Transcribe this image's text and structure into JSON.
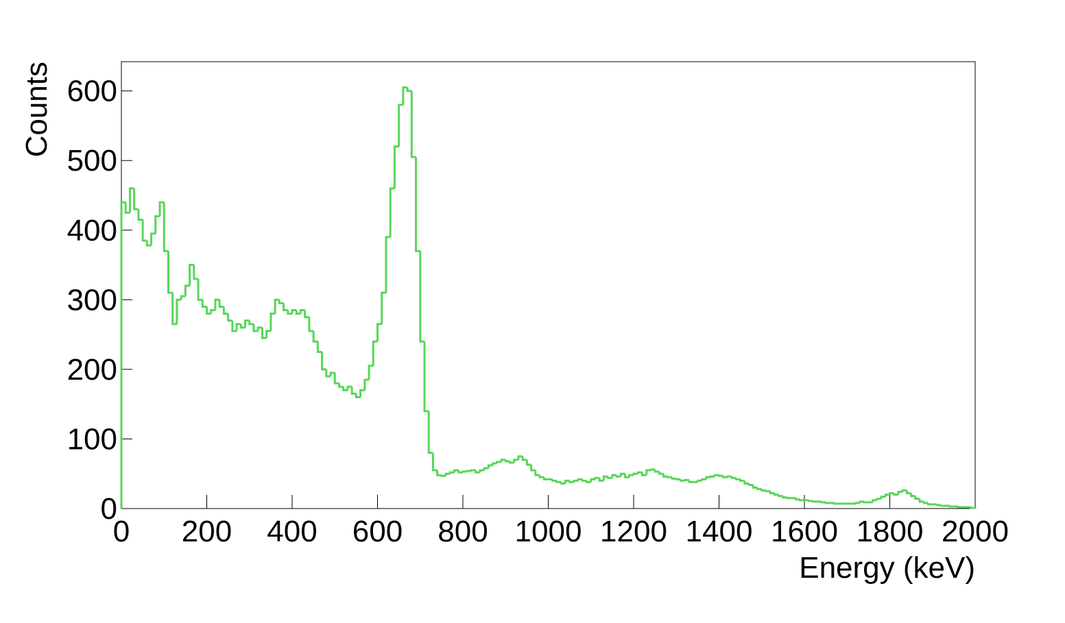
{
  "chart_data": {
    "type": "histogram",
    "x_label": "Energy (keV)",
    "y_label": "Counts",
    "color": "#57d657",
    "bins": [
      0,
      10,
      20,
      30,
      40,
      50,
      60,
      70,
      80,
      90,
      100,
      110,
      120,
      130,
      140,
      150,
      160,
      170,
      180,
      190,
      200,
      210,
      220,
      230,
      240,
      250,
      260,
      270,
      280,
      290,
      300,
      310,
      320,
      330,
      340,
      350,
      360,
      370,
      380,
      390,
      400,
      410,
      420,
      430,
      440,
      450,
      460,
      470,
      480,
      490,
      500,
      510,
      520,
      530,
      540,
      550,
      560,
      570,
      580,
      590,
      600,
      610,
      620,
      630,
      640,
      650,
      660,
      670,
      680,
      690,
      700,
      710,
      720,
      730,
      740,
      750,
      760,
      770,
      780,
      790,
      800,
      810,
      820,
      830,
      840,
      850,
      860,
      870,
      880,
      890,
      900,
      910,
      920,
      930,
      940,
      950,
      960,
      970,
      980,
      990,
      1000,
      1010,
      1020,
      1030,
      1040,
      1050,
      1060,
      1070,
      1080,
      1090,
      1100,
      1110,
      1120,
      1130,
      1140,
      1150,
      1160,
      1170,
      1180,
      1190,
      1200,
      1210,
      1220,
      1230,
      1240,
      1250,
      1260,
      1270,
      1280,
      1290,
      1300,
      1310,
      1320,
      1330,
      1340,
      1350,
      1360,
      1370,
      1380,
      1390,
      1400,
      1410,
      1420,
      1430,
      1440,
      1450,
      1460,
      1470,
      1480,
      1490,
      1500,
      1510,
      1520,
      1530,
      1540,
      1550,
      1560,
      1570,
      1580,
      1590,
      1600,
      1610,
      1620,
      1630,
      1640,
      1650,
      1660,
      1670,
      1680,
      1690,
      1700,
      1710,
      1720,
      1730,
      1740,
      1750,
      1760,
      1770,
      1780,
      1790,
      1800,
      1810,
      1820,
      1830,
      1840,
      1850,
      1860,
      1870,
      1880,
      1890,
      1900,
      1910,
      1920,
      1930,
      1940,
      1950,
      1960,
      1970,
      1980,
      1990,
      2000
    ],
    "counts": [
      440,
      425,
      460,
      430,
      415,
      385,
      378,
      395,
      420,
      440,
      370,
      310,
      265,
      300,
      305,
      320,
      350,
      330,
      300,
      290,
      280,
      285,
      300,
      290,
      280,
      270,
      255,
      265,
      260,
      270,
      265,
      255,
      260,
      245,
      255,
      280,
      300,
      295,
      285,
      280,
      285,
      280,
      285,
      275,
      255,
      240,
      225,
      200,
      190,
      195,
      180,
      175,
      170,
      175,
      165,
      160,
      170,
      185,
      205,
      240,
      265,
      310,
      390,
      460,
      520,
      580,
      605,
      600,
      505,
      370,
      240,
      140,
      80,
      55,
      48,
      47,
      50,
      52,
      55,
      52,
      53,
      54,
      55,
      52,
      55,
      58,
      62,
      65,
      67,
      70,
      68,
      66,
      70,
      75,
      70,
      63,
      55,
      48,
      45,
      42,
      42,
      40,
      38,
      36,
      40,
      38,
      40,
      42,
      40,
      38,
      42,
      44,
      40,
      46,
      44,
      48,
      46,
      50,
      45,
      48,
      50,
      52,
      48,
      55,
      56,
      53,
      50,
      46,
      45,
      43,
      42,
      40,
      41,
      38,
      38,
      40,
      42,
      45,
      46,
      48,
      47,
      45,
      46,
      44,
      42,
      40,
      36,
      34,
      30,
      28,
      26,
      25,
      22,
      20,
      18,
      16,
      15,
      15,
      13,
      12,
      12,
      11,
      10,
      10,
      9,
      8,
      8,
      7,
      7,
      7,
      7,
      7,
      8,
      10,
      9,
      9,
      12,
      14,
      17,
      20,
      22,
      20,
      24,
      26,
      22,
      18,
      14,
      10,
      8,
      6,
      6,
      5,
      4,
      4,
      3,
      3,
      2,
      2,
      2,
      1
    ],
    "xlim": [
      0,
      2000
    ],
    "ylim": [
      0,
      642
    ],
    "xticks": [
      0,
      200,
      400,
      600,
      800,
      1000,
      1200,
      1400,
      1600,
      1800,
      2000
    ],
    "yticks": [
      0,
      100,
      200,
      300,
      400,
      500,
      600
    ]
  }
}
